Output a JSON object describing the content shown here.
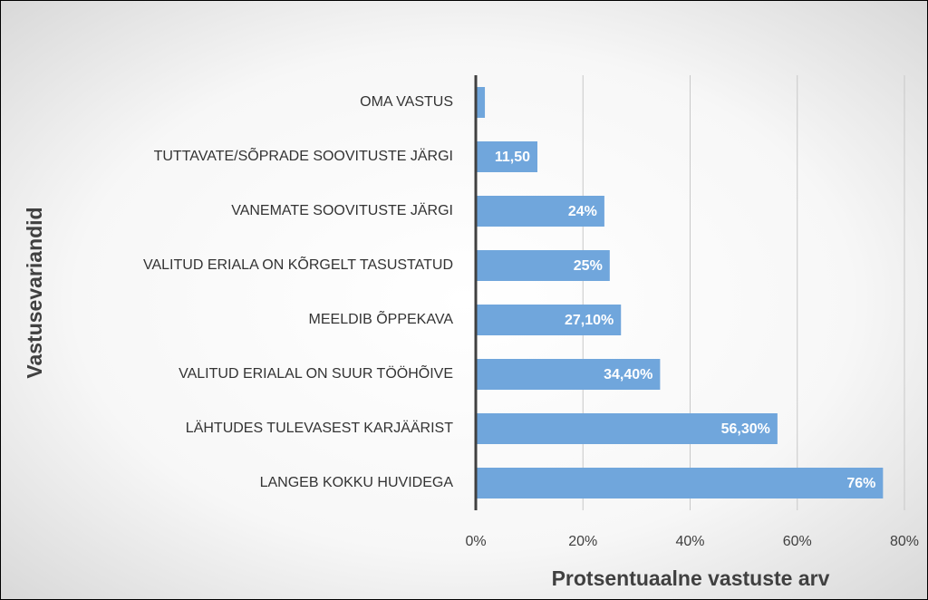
{
  "chart_data": {
    "type": "barh",
    "categories": [
      "OMA VASTUS",
      "TUTTAVATE/SÕPRADE SOOVITUSTE JÄRGI",
      "VANEMATE SOOVITUSTE JÄRGI",
      "VALITUD ERIALA ON KÕRGELT TASUSTATUD",
      "MEELDIB ÕPPEKAVA",
      "VALITUD ERIALAL ON SUUR TÖÖHÕIVE",
      "LÄHTUDES TULEVASEST KARJÄÄRIST",
      "LANGEB KOKKU HUVIDEGA"
    ],
    "values": [
      1.7,
      11.5,
      24,
      25,
      27.1,
      34.4,
      56.3,
      76
    ],
    "value_labels": [
      null,
      "11,50",
      "24%",
      "25%",
      "27,10%",
      "34,40%",
      "56,30%",
      "76%"
    ],
    "color": "#70a6dc",
    "xlim": [
      0,
      80
    ],
    "xticks": [
      {
        "value": 0,
        "label": "0%"
      },
      {
        "value": 20,
        "label": "20%"
      },
      {
        "value": 40,
        "label": "40%"
      },
      {
        "value": 60,
        "label": "60%"
      },
      {
        "value": 80,
        "label": "80%"
      }
    ],
    "xlabel": "Protsentuaalne vastuste arv",
    "ylabel": "Vastusevariandid",
    "grid": true
  }
}
